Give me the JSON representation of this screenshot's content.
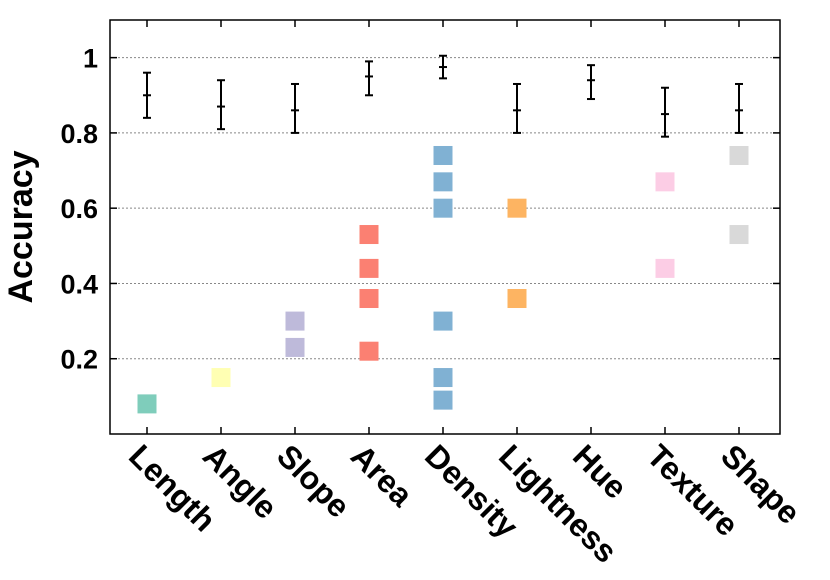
{
  "chart_data": {
    "type": "scatter",
    "title": "",
    "xlabel": "",
    "ylabel": "Accuracy",
    "ylim": [
      0,
      1.1
    ],
    "y_ticks": [
      0.2,
      0.4,
      0.6,
      0.8,
      1
    ],
    "y_tick_labels": [
      "0.2",
      "0.4",
      "0.6",
      "0.8",
      "1"
    ],
    "grid": true,
    "categories": [
      "Length",
      "Angle",
      "Slope",
      "Area",
      "Density",
      "Lightness",
      "Hue",
      "Texture",
      "Shape"
    ],
    "colors": [
      "#7fcdbb",
      "#ffffb3",
      "#bebada",
      "#fb8072",
      "#80b1d3",
      "#fdb462",
      "#ffffff",
      "#fccde5",
      "#d9d9d9"
    ],
    "mean_accuracy": [
      0.9,
      0.87,
      0.86,
      0.95,
      0.975,
      0.86,
      0.94,
      0.85,
      0.86
    ],
    "error_low": [
      0.84,
      0.81,
      0.8,
      0.9,
      0.945,
      0.8,
      0.89,
      0.79,
      0.8
    ],
    "error_high": [
      0.96,
      0.94,
      0.93,
      0.99,
      1.005,
      0.93,
      0.98,
      0.92,
      0.93
    ],
    "squares": [
      [
        0.08
      ],
      [
        0.15
      ],
      [
        0.3,
        0.23
      ],
      [
        0.53,
        0.44,
        0.36,
        0.22
      ],
      [
        0.74,
        0.67,
        0.6,
        0.3,
        0.15,
        0.09
      ],
      [
        0.6,
        0.36
      ],
      [],
      [
        0.67,
        0.44
      ],
      [
        0.74,
        0.53
      ]
    ]
  }
}
